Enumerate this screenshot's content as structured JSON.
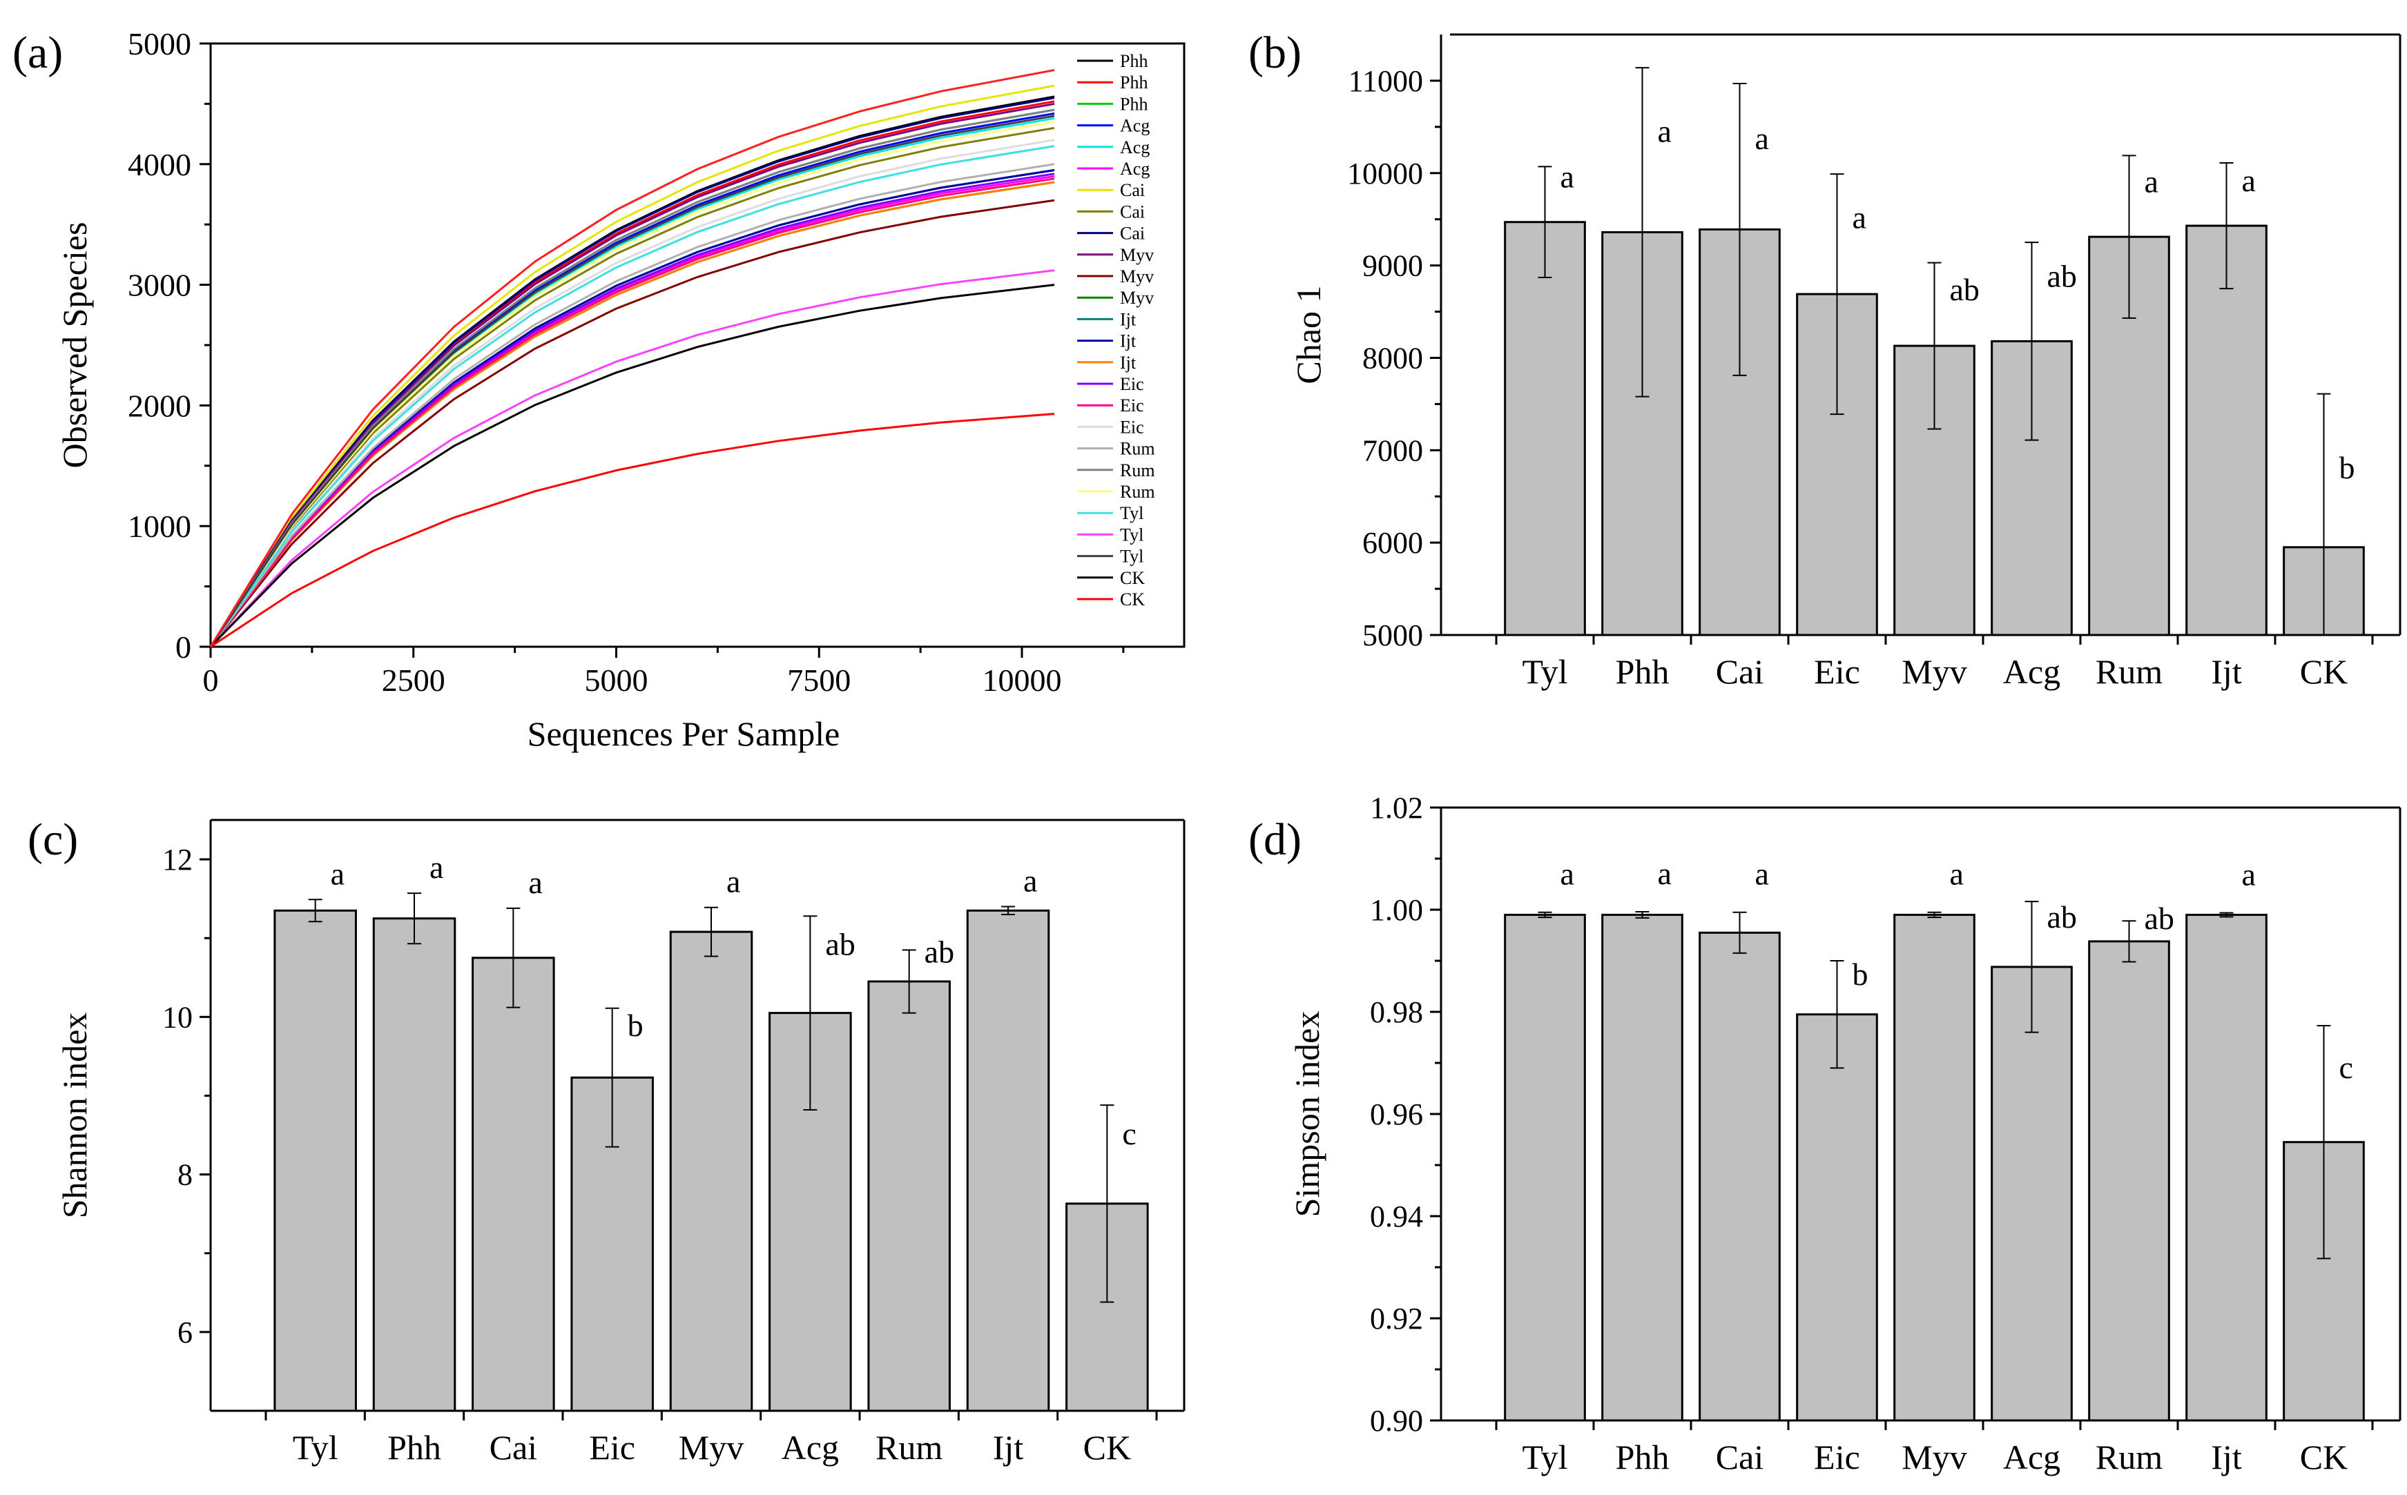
{
  "chart_data": [
    {
      "panel": "(a)",
      "type": "line",
      "xlabel": "Sequences Per Sample",
      "ylabel": "Observed Species",
      "xlim": [
        0,
        12000
      ],
      "ylim": [
        0,
        5000
      ],
      "xticks": [
        0,
        2500,
        5000,
        7500,
        10000
      ],
      "yticks": [
        0,
        1000,
        2000,
        3000,
        4000,
        5000
      ],
      "x": [
        0,
        1000,
        2000,
        3000,
        4000,
        5000,
        6000,
        7000,
        8000,
        9000,
        10400
      ],
      "legend_position": "top-right",
      "series": [
        {
          "name": "Phh",
          "color": "#000000",
          "final": 4560
        },
        {
          "name": "Phh",
          "color": "#ff0000",
          "final": 4520
        },
        {
          "name": "Phh",
          "color": "#00cc00",
          "final": 4450
        },
        {
          "name": "Acg",
          "color": "#0000ff",
          "final": 4420
        },
        {
          "name": "Acg",
          "color": "#00e5e5",
          "final": 4380
        },
        {
          "name": "Acg",
          "color": "#ff00ff",
          "final": 3900
        },
        {
          "name": "Cai",
          "color": "#e5e500",
          "final": 4650
        },
        {
          "name": "Cai",
          "color": "#808000",
          "final": 4300
        },
        {
          "name": "Cai",
          "color": "#000080",
          "final": 4550
        },
        {
          "name": "Myv",
          "color": "#800080",
          "final": 4500
        },
        {
          "name": "Myv",
          "color": "#800000",
          "final": 3700
        },
        {
          "name": "Myv",
          "color": "#008000",
          "final": 3850
        },
        {
          "name": "Ijt",
          "color": "#008080",
          "final": 3950
        },
        {
          "name": "Ijt",
          "color": "#0000a0",
          "final": 3950
        },
        {
          "name": "Ijt",
          "color": "#ff8000",
          "final": 3850
        },
        {
          "name": "Eic",
          "color": "#8000ff",
          "final": 3920
        },
        {
          "name": "Eic",
          "color": "#ff0080",
          "final": 3880
        },
        {
          "name": "Eic",
          "color": "#ffffff",
          "final": 4200
        },
        {
          "name": "Rum",
          "color": "#b0b0b0",
          "final": 4000
        },
        {
          "name": "Rum",
          "color": "#808080",
          "final": 4450
        },
        {
          "name": "Rum",
          "color": "#ffff80",
          "final": 4350
        },
        {
          "name": "Tyl",
          "color": "#40e0e0",
          "final": 4150
        },
        {
          "name": "Tyl",
          "color": "#ff40ff",
          "final": 3120
        },
        {
          "name": "Tyl",
          "color": "#404040",
          "final": 4400
        },
        {
          "name": "CK",
          "color": "#000000",
          "final": 3000
        },
        {
          "name": "CK",
          "color": "#ff0000",
          "final": 1930
        },
        {
          "name": "",
          "color": "#ff2020",
          "final": 4780
        }
      ]
    },
    {
      "panel": "(b)",
      "type": "bar",
      "ylabel": "Chao 1",
      "ylim": [
        5000,
        11500
      ],
      "yticks": [
        5000,
        6000,
        7000,
        8000,
        9000,
        10000,
        11000
      ],
      "categories": [
        "Tyl",
        "Phh",
        "Cai",
        "Eic",
        "Myv",
        "Acg",
        "Rum",
        "Ijt",
        "CK"
      ],
      "values": [
        9470,
        9360,
        9390,
        8690,
        8130,
        8180,
        9310,
        9430,
        5950
      ],
      "errors": [
        600,
        1780,
        1580,
        1300,
        900,
        1070,
        880,
        680,
        1660
      ],
      "letters": [
        "a",
        "a",
        "a",
        "a",
        "ab",
        "ab",
        "a",
        "a",
        "b"
      ]
    },
    {
      "panel": "(c)",
      "type": "bar",
      "ylabel": "Shannon index",
      "ylim": [
        5,
        12.5
      ],
      "yticks": [
        6,
        8,
        10,
        12
      ],
      "categories": [
        "Tyl",
        "Phh",
        "Cai",
        "Eic",
        "Myv",
        "Acg",
        "Rum",
        "Ijt",
        "CK"
      ],
      "values": [
        11.35,
        11.25,
        10.75,
        9.23,
        11.08,
        10.05,
        10.45,
        11.35,
        7.63
      ],
      "errors": [
        0.14,
        0.32,
        0.63,
        0.88,
        0.31,
        1.23,
        0.4,
        0.05,
        1.25
      ],
      "letters": [
        "a",
        "a",
        "a",
        "b",
        "a",
        "ab",
        "ab",
        "a",
        "c"
      ]
    },
    {
      "panel": "(d)",
      "type": "bar",
      "ylabel": "Simpson  index",
      "ylim": [
        0.9,
        1.02
      ],
      "yticks": [
        0.9,
        0.92,
        0.94,
        0.96,
        0.98,
        1.0,
        1.02
      ],
      "ytick_labels": [
        "0.90",
        "0.92",
        "0.94",
        "0.96",
        "0.98",
        "1.00",
        "1.02"
      ],
      "categories": [
        "Tyl",
        "Phh",
        "Cai",
        "Eic",
        "Myv",
        "Acg",
        "Rum",
        "Ijt",
        "CK"
      ],
      "values": [
        0.999,
        0.999,
        0.9955,
        0.9795,
        0.999,
        0.9888,
        0.9938,
        0.999,
        0.9545
      ],
      "errors": [
        0.0005,
        0.0006,
        0.004,
        0.0105,
        0.0005,
        0.0128,
        0.004,
        0.0004,
        0.0228
      ],
      "letters": [
        "a",
        "a",
        "a",
        "b",
        "a",
        "ab",
        "ab",
        "a",
        "c"
      ]
    }
  ]
}
